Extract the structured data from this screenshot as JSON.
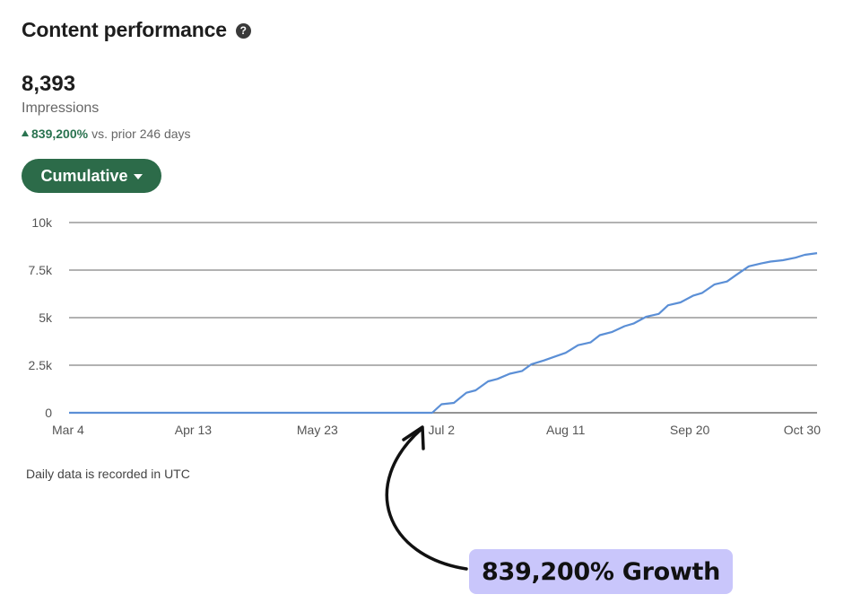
{
  "header": {
    "title": "Content performance",
    "help_icon": "help-circle-icon"
  },
  "summary": {
    "value": "8,393",
    "label": "Impressions",
    "delta_value": "839,200%",
    "delta_text": "vs. prior 246 days"
  },
  "view_selector": {
    "label": "Cumulative"
  },
  "footnote": "Daily data is recorded in UTC",
  "annotation": {
    "label": "839,200% Growth"
  },
  "colors": {
    "accent": "#2c6b49",
    "line": "#5b8fd6",
    "positive": "#2a7350",
    "highlight": "#c9c6fb"
  },
  "chart_data": {
    "type": "line",
    "x_tick_labels": [
      "Mar 4",
      "Apr 13",
      "May 23",
      "Jul 2",
      "Aug 11",
      "Sep 20",
      "Oct 30"
    ],
    "y_tick_labels": [
      "0",
      "2.5k",
      "5k",
      "7.5k",
      "10k"
    ],
    "ylim": [
      0,
      10000
    ],
    "grid": true,
    "series": [
      {
        "values_by_day": {
          "x": [
            0,
            117,
            120,
            124,
            128,
            131,
            135,
            138,
            142,
            146,
            149,
            153,
            157,
            160,
            164,
            168,
            171,
            175,
            179,
            182,
            186,
            190,
            193,
            197,
            201,
            204,
            208,
            212,
            215,
            219,
            223,
            226,
            230,
            234,
            237,
            241
          ],
          "y": [
            0,
            0,
            450,
            520,
            1050,
            1180,
            1650,
            1780,
            2050,
            2200,
            2550,
            2750,
            2980,
            3150,
            3550,
            3700,
            4080,
            4250,
            4550,
            4700,
            5050,
            5200,
            5650,
            5800,
            6150,
            6300,
            6750,
            6900,
            7250,
            7700,
            7850,
            7950,
            8020,
            8150,
            8300,
            8393
          ]
        }
      }
    ]
  }
}
